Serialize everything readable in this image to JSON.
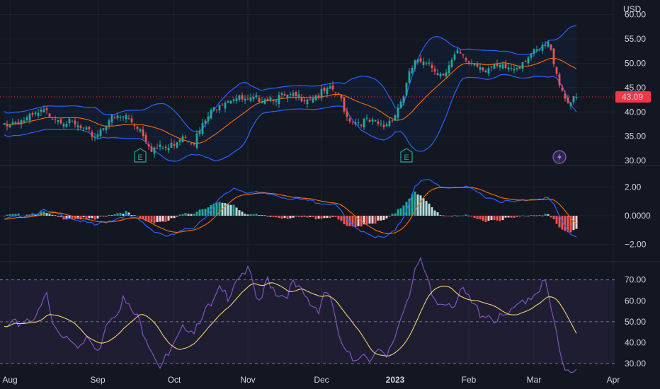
{
  "currency": "USD",
  "price_panel": {
    "last_price": "43.09",
    "y_ticks": [
      {
        "label": "60.00",
        "value": 60
      },
      {
        "label": "55.00",
        "value": 55
      },
      {
        "label": "50.00",
        "value": 50
      },
      {
        "label": "45.00",
        "value": 45
      },
      {
        "label": "40.00",
        "value": 40
      },
      {
        "label": "35.00",
        "value": 35
      },
      {
        "label": "30.00",
        "value": 30
      }
    ],
    "ylim": [
      29,
      63
    ],
    "earnings_markers": [
      {
        "label": "E",
        "day": 48
      },
      {
        "label": "E",
        "day": 142
      }
    ],
    "event_marker": {
      "icon": "lightning-icon",
      "day": 196
    }
  },
  "macd_panel": {
    "y_ticks": [
      {
        "label": "2.00",
        "value": 2
      },
      {
        "label": "0.0000",
        "value": 0
      },
      {
        "label": "−2.00",
        "value": -2
      }
    ],
    "ylim": [
      -3.1,
      3.3
    ]
  },
  "rsi_panel": {
    "y_ticks": [
      {
        "label": "70.00",
        "value": 70
      },
      {
        "label": "60.00",
        "value": 60
      },
      {
        "label": "50.00",
        "value": 50
      },
      {
        "label": "40.00",
        "value": 40
      },
      {
        "label": "30.00",
        "value": 30
      }
    ],
    "band": [
      30,
      70
    ],
    "ylim": [
      28,
      78
    ]
  },
  "x_axis": [
    {
      "label": "Aug",
      "day": 2,
      "bold": false
    },
    {
      "label": "Sep",
      "day": 33,
      "bold": false
    },
    {
      "label": "Oct",
      "day": 60,
      "bold": false
    },
    {
      "label": "Nov",
      "day": 86,
      "bold": false
    },
    {
      "label": "Dec",
      "day": 112,
      "bold": false
    },
    {
      "label": "2023",
      "day": 138,
      "bold": true
    },
    {
      "label": "Feb",
      "day": 164,
      "bold": false
    },
    {
      "label": "Mar",
      "day": 187,
      "bold": false
    },
    {
      "label": "Apr",
      "day": 215,
      "bold": false
    }
  ],
  "colors": {
    "background": "#131722",
    "up": "#26a69a",
    "down": "#ef5350",
    "bollinger": "#2962ff",
    "ma": "#ff6d00",
    "rsi": "#7e57c2",
    "rsi_ma": "#f5d26b",
    "last_price": "#f23645"
  },
  "chart_data": [
    {
      "type": "candlestick",
      "indicators": [
        "Bollinger Bands",
        "Moving Average"
      ],
      "anchors": [
        {
          "day": 0,
          "close": 38.0
        },
        {
          "day": 8,
          "close": 39.0
        },
        {
          "day": 14,
          "close": 40.5
        },
        {
          "day": 22,
          "close": 38.5
        },
        {
          "day": 27,
          "close": 37.0
        },
        {
          "day": 32,
          "close": 35.5
        },
        {
          "day": 37,
          "close": 39.0
        },
        {
          "day": 43,
          "close": 39.5
        },
        {
          "day": 48,
          "close": 37.0
        },
        {
          "day": 52,
          "close": 33.0
        },
        {
          "day": 58,
          "close": 33.0
        },
        {
          "day": 63,
          "close": 36.0
        },
        {
          "day": 67,
          "close": 34.5
        },
        {
          "day": 72,
          "close": 39.5
        },
        {
          "day": 76,
          "close": 42.5
        },
        {
          "day": 81,
          "close": 43.5
        },
        {
          "day": 86,
          "close": 42.5
        },
        {
          "day": 91,
          "close": 43.5
        },
        {
          "day": 96,
          "close": 43.5
        },
        {
          "day": 102,
          "close": 43.5
        },
        {
          "day": 108,
          "close": 43.5
        },
        {
          "day": 113,
          "close": 44.5
        },
        {
          "day": 116,
          "close": 45.0
        },
        {
          "day": 119,
          "close": 43.0
        },
        {
          "day": 121,
          "close": 39.5
        },
        {
          "day": 124,
          "close": 38.5
        },
        {
          "day": 128,
          "close": 38.5
        },
        {
          "day": 131,
          "close": 38.0
        },
        {
          "day": 134,
          "close": 37.5
        },
        {
          "day": 138,
          "close": 40.0
        },
        {
          "day": 141,
          "close": 44.0
        },
        {
          "day": 143,
          "close": 48.0
        },
        {
          "day": 145,
          "close": 51.0
        },
        {
          "day": 148,
          "close": 50.0
        },
        {
          "day": 150,
          "close": 51.0
        },
        {
          "day": 153,
          "close": 48.5
        },
        {
          "day": 156,
          "close": 49.0
        },
        {
          "day": 160,
          "close": 52.5
        },
        {
          "day": 163,
          "close": 51.0
        },
        {
          "day": 166,
          "close": 50.5
        },
        {
          "day": 170,
          "close": 49.5
        },
        {
          "day": 175,
          "close": 49.5
        },
        {
          "day": 180,
          "close": 49.5
        },
        {
          "day": 185,
          "close": 52.0
        },
        {
          "day": 189,
          "close": 53.0
        },
        {
          "day": 192,
          "close": 54.5
        },
        {
          "day": 194,
          "close": 51.0
        },
        {
          "day": 196,
          "close": 46.5
        },
        {
          "day": 198,
          "close": 43.5
        },
        {
          "day": 200,
          "close": 42.5
        },
        {
          "day": 202,
          "close": 43.09
        }
      ]
    },
    {
      "type": "histogram+line",
      "indicator": "MACD",
      "macd_anchors": [
        {
          "day": 0,
          "value": -0.2
        },
        {
          "day": 8,
          "value": 0.1
        },
        {
          "day": 14,
          "value": 0.4
        },
        {
          "day": 22,
          "value": 0.0
        },
        {
          "day": 27,
          "value": -0.3
        },
        {
          "day": 32,
          "value": -0.6
        },
        {
          "day": 37,
          "value": -0.3
        },
        {
          "day": 43,
          "value": 0.1
        },
        {
          "day": 48,
          "value": -0.3
        },
        {
          "day": 52,
          "value": -0.9
        },
        {
          "day": 58,
          "value": -1.4
        },
        {
          "day": 63,
          "value": -1.0
        },
        {
          "day": 67,
          "value": -0.7
        },
        {
          "day": 72,
          "value": 0.2
        },
        {
          "day": 76,
          "value": 1.2
        },
        {
          "day": 81,
          "value": 2.0
        },
        {
          "day": 86,
          "value": 1.7
        },
        {
          "day": 91,
          "value": 1.6
        },
        {
          "day": 96,
          "value": 1.5
        },
        {
          "day": 102,
          "value": 1.2
        },
        {
          "day": 108,
          "value": 1.1
        },
        {
          "day": 113,
          "value": 0.9
        },
        {
          "day": 116,
          "value": 0.9
        },
        {
          "day": 119,
          "value": 0.4
        },
        {
          "day": 121,
          "value": -0.3
        },
        {
          "day": 124,
          "value": -0.8
        },
        {
          "day": 128,
          "value": -1.1
        },
        {
          "day": 131,
          "value": -1.4
        },
        {
          "day": 134,
          "value": -1.5
        },
        {
          "day": 138,
          "value": -1.0
        },
        {
          "day": 141,
          "value": 0.0
        },
        {
          "day": 143,
          "value": 1.0
        },
        {
          "day": 145,
          "value": 2.2
        },
        {
          "day": 148,
          "value": 2.5
        },
        {
          "day": 150,
          "value": 2.5
        },
        {
          "day": 153,
          "value": 2.2
        },
        {
          "day": 156,
          "value": 2.0
        },
        {
          "day": 160,
          "value": 2.1
        },
        {
          "day": 163,
          "value": 2.0
        },
        {
          "day": 166,
          "value": 1.8
        },
        {
          "day": 170,
          "value": 1.4
        },
        {
          "day": 175,
          "value": 1.1
        },
        {
          "day": 180,
          "value": 1.0
        },
        {
          "day": 185,
          "value": 1.2
        },
        {
          "day": 189,
          "value": 1.3
        },
        {
          "day": 192,
          "value": 1.3
        },
        {
          "day": 194,
          "value": 0.8
        },
        {
          "day": 196,
          "value": 0.0
        },
        {
          "day": 198,
          "value": -0.7
        },
        {
          "day": 200,
          "value": -1.2
        },
        {
          "day": 202,
          "value": -1.4
        }
      ]
    },
    {
      "type": "line",
      "indicator": "RSI",
      "rsi_anchors": [
        {
          "day": 0,
          "value": 48
        },
        {
          "day": 4,
          "value": 50
        },
        {
          "day": 8,
          "value": 53
        },
        {
          "day": 12,
          "value": 55
        },
        {
          "day": 15,
          "value": 65
        },
        {
          "day": 17,
          "value": 50
        },
        {
          "day": 20,
          "value": 46
        },
        {
          "day": 24,
          "value": 44
        },
        {
          "day": 27,
          "value": 40
        },
        {
          "day": 30,
          "value": 43
        },
        {
          "day": 33,
          "value": 36
        },
        {
          "day": 36,
          "value": 52
        },
        {
          "day": 39,
          "value": 56
        },
        {
          "day": 42,
          "value": 62
        },
        {
          "day": 44,
          "value": 58
        },
        {
          "day": 47,
          "value": 53
        },
        {
          "day": 50,
          "value": 45
        },
        {
          "day": 53,
          "value": 36
        },
        {
          "day": 55,
          "value": 31
        },
        {
          "day": 58,
          "value": 35
        },
        {
          "day": 61,
          "value": 42
        },
        {
          "day": 64,
          "value": 50
        },
        {
          "day": 67,
          "value": 48
        },
        {
          "day": 70,
          "value": 56
        },
        {
          "day": 73,
          "value": 58
        },
        {
          "day": 76,
          "value": 66
        },
        {
          "day": 79,
          "value": 64
        },
        {
          "day": 82,
          "value": 73
        },
        {
          "day": 85,
          "value": 76
        },
        {
          "day": 87,
          "value": 74
        },
        {
          "day": 89,
          "value": 60
        },
        {
          "day": 91,
          "value": 63
        },
        {
          "day": 93,
          "value": 72
        },
        {
          "day": 96,
          "value": 66
        },
        {
          "day": 99,
          "value": 64
        },
        {
          "day": 102,
          "value": 69
        },
        {
          "day": 105,
          "value": 65
        },
        {
          "day": 108,
          "value": 60
        },
        {
          "day": 111,
          "value": 58
        },
        {
          "day": 113,
          "value": 66
        },
        {
          "day": 115,
          "value": 65
        },
        {
          "day": 117,
          "value": 50
        },
        {
          "day": 120,
          "value": 37
        },
        {
          "day": 123,
          "value": 33
        },
        {
          "day": 126,
          "value": 37
        },
        {
          "day": 129,
          "value": 35
        },
        {
          "day": 132,
          "value": 37
        },
        {
          "day": 135,
          "value": 33
        },
        {
          "day": 138,
          "value": 45
        },
        {
          "day": 141,
          "value": 58
        },
        {
          "day": 143,
          "value": 66
        },
        {
          "day": 145,
          "value": 77
        },
        {
          "day": 147,
          "value": 79
        },
        {
          "day": 149,
          "value": 72
        },
        {
          "day": 151,
          "value": 64
        },
        {
          "day": 153,
          "value": 60
        },
        {
          "day": 156,
          "value": 62
        },
        {
          "day": 159,
          "value": 60
        },
        {
          "day": 162,
          "value": 66
        },
        {
          "day": 165,
          "value": 60
        },
        {
          "day": 168,
          "value": 56
        },
        {
          "day": 171,
          "value": 55
        },
        {
          "day": 174,
          "value": 52
        },
        {
          "day": 177,
          "value": 54
        },
        {
          "day": 180,
          "value": 56
        },
        {
          "day": 183,
          "value": 62
        },
        {
          "day": 186,
          "value": 64
        },
        {
          "day": 189,
          "value": 68
        },
        {
          "day": 191,
          "value": 70
        },
        {
          "day": 193,
          "value": 58
        },
        {
          "day": 195,
          "value": 44
        },
        {
          "day": 197,
          "value": 30
        },
        {
          "day": 200,
          "value": 29
        },
        {
          "day": 202,
          "value": 30
        }
      ]
    }
  ]
}
